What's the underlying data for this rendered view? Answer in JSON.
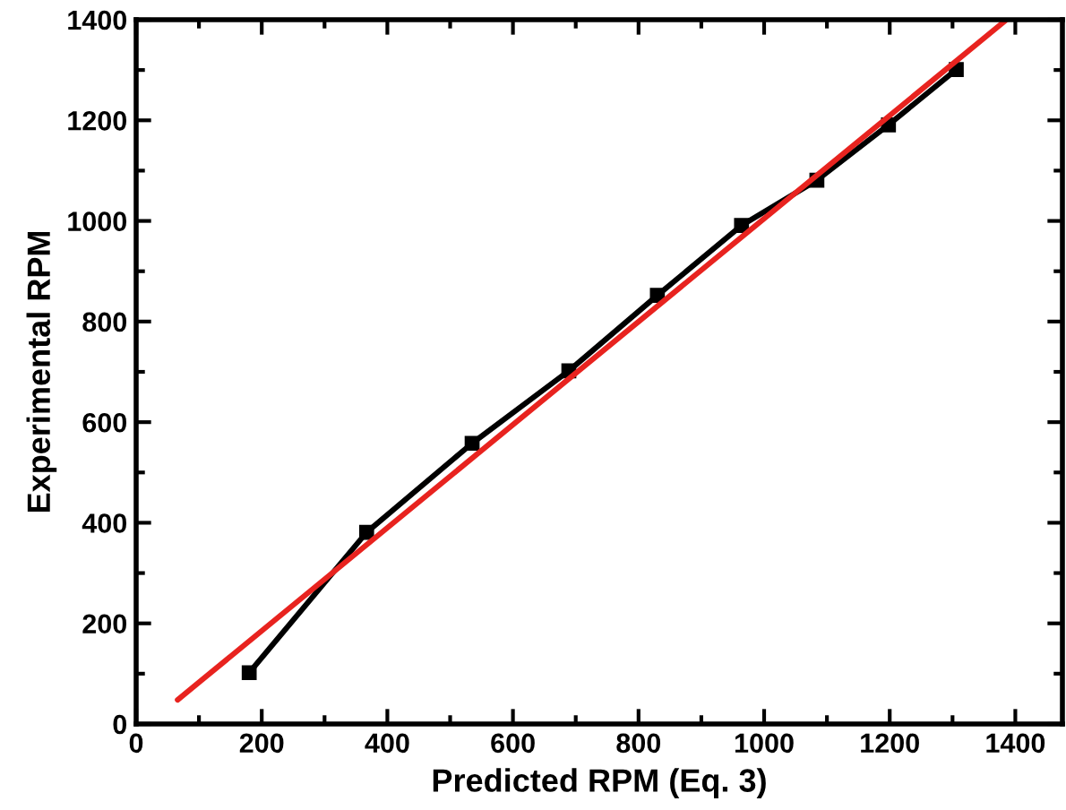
{
  "chart_data": {
    "type": "line",
    "xlabel": "Predicted RPM (Eq. 3)",
    "ylabel": "Experimental RPM",
    "series": [
      {
        "color": "#000000",
        "marker": "square",
        "x": [
          180,
          367,
          535,
          689,
          830,
          964,
          1084,
          1198,
          1306
        ],
        "values": [
          102,
          381,
          558,
          702,
          852,
          991,
          1081,
          1191,
          1301
        ]
      },
      {
        "color": "#e8231f",
        "marker": "none",
        "x": [
          66,
          1386
        ],
        "values": [
          48,
          1400
        ]
      }
    ],
    "xlim": [
      0,
      1475
    ],
    "ylim": [
      0,
      1400
    ],
    "xticks": [
      0,
      {
        "value": 100,
        "label": null
      },
      200,
      {
        "value": 300,
        "label": null
      },
      400,
      {
        "value": 500,
        "label": null
      },
      600,
      {
        "value": 700,
        "label": null
      },
      800,
      {
        "value": 900,
        "label": null
      },
      1000,
      {
        "value": 1100,
        "label": null
      },
      1200,
      {
        "value": 1300,
        "label": null
      },
      1400
    ],
    "yticks": [
      0,
      {
        "value": 100,
        "label": null
      },
      200,
      {
        "value": 300,
        "label": null
      },
      400,
      {
        "value": 500,
        "label": null
      },
      600,
      {
        "value": 700,
        "label": null
      },
      800,
      {
        "value": 900,
        "label": null
      },
      1000,
      {
        "value": 1100,
        "label": null
      },
      1200,
      {
        "value": 1300,
        "label": null
      },
      1400
    ],
    "grid": false,
    "legend": false
  }
}
